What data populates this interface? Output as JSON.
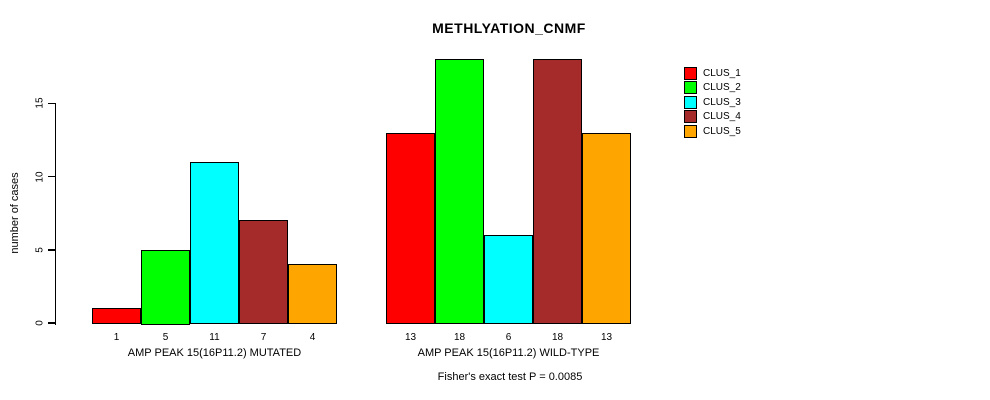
{
  "chart_data": {
    "type": "bar",
    "title": "METHLYATION_CNMF",
    "ylabel": "number of cases",
    "caption": "Fisher's exact test P = 0.0085",
    "yticks": [
      0,
      5,
      10,
      15
    ],
    "ylim": [
      0,
      18
    ],
    "grid": false,
    "legend_position": "right",
    "clusters": [
      "CLUS_1",
      "CLUS_2",
      "CLUS_3",
      "CLUS_4",
      "CLUS_5"
    ],
    "cluster_colors": [
      "#ff0000",
      "#00ff00",
      "#00ffff",
      "#a52a2a",
      "#ffa500"
    ],
    "groups": [
      {
        "label": "AMP PEAK 15(16P11.2) MUTATED",
        "values": [
          1,
          5,
          11,
          7,
          4
        ]
      },
      {
        "label": "AMP PEAK 15(16P11.2) WILD-TYPE",
        "values": [
          13,
          18,
          6,
          18,
          13
        ]
      }
    ],
    "legend": {
      "entries": [
        {
          "label": "CLUS_1",
          "color": "#ff0000"
        },
        {
          "label": "CLUS_2",
          "color": "#00ff00"
        },
        {
          "label": "CLUS_3",
          "color": "#00ffff"
        },
        {
          "label": "CLUS_4",
          "color": "#a52a2a"
        },
        {
          "label": "CLUS_5",
          "color": "#ffa500"
        }
      ]
    }
  }
}
